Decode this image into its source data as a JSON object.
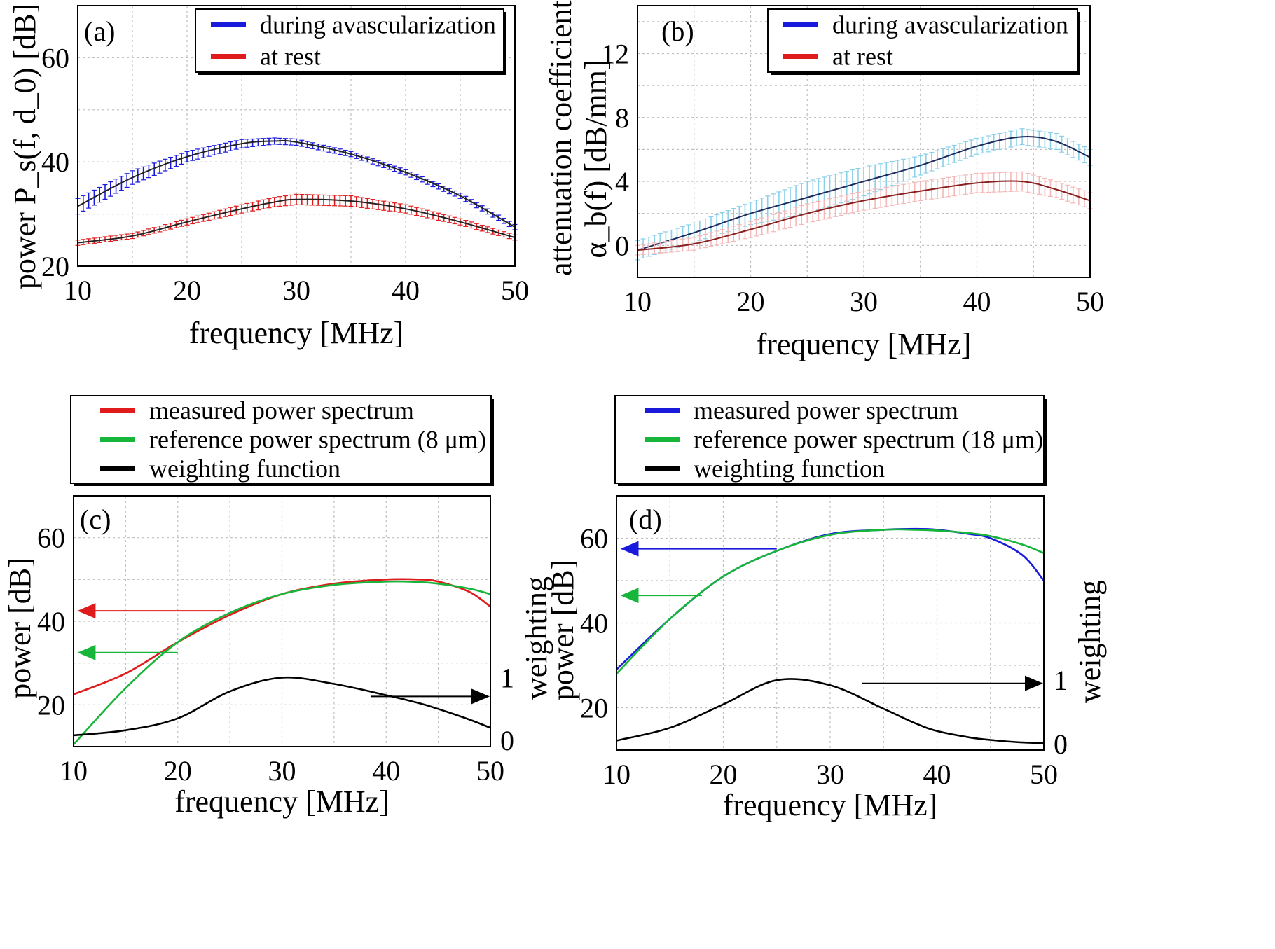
{
  "colors": {
    "blue": "#1a1adc",
    "red": "#e01b1b",
    "green": "#17b53a",
    "black": "#000000",
    "light_blue": "#8ad0e8",
    "dark_blue": "#1c2a5c",
    "light_red": "#f4b8b8",
    "dark_red": "#8a1f1f",
    "grid": "#bfbfbf"
  },
  "chart_data": [
    {
      "id": "a",
      "panel_label": "(a)",
      "type": "line",
      "xlabel": "frequency [MHz]",
      "ylabel": "power P_s(f, d_0) [dB]",
      "xlim": [
        10,
        50
      ],
      "ylim": [
        20,
        70
      ],
      "xticks": [
        10,
        20,
        30,
        40,
        50
      ],
      "yticks": [
        20,
        40,
        60
      ],
      "grid": true,
      "legend_position": "top-right",
      "x": [
        10,
        15,
        20,
        25,
        28,
        30,
        35,
        40,
        45,
        50
      ],
      "series": [
        {
          "name": "during avascularization",
          "color": "blue",
          "values": [
            31.5,
            37,
            41,
            43.5,
            44,
            43.8,
            41.5,
            38,
            33.5,
            27.5
          ],
          "error": [
            1.5,
            1.3,
            1.0,
            0.8,
            0.6,
            0.6,
            0.5,
            0.5,
            0.5,
            0.5
          ]
        },
        {
          "name": "at rest",
          "color": "red",
          "values": [
            24.5,
            25.8,
            28.5,
            31,
            32.3,
            32.8,
            32.5,
            31,
            28.5,
            25.5
          ],
          "error": [
            0.5,
            0.5,
            0.6,
            0.8,
            0.9,
            1.0,
            1.0,
            0.8,
            0.6,
            0.5
          ]
        }
      ]
    },
    {
      "id": "b",
      "panel_label": "(b)",
      "type": "line",
      "xlabel": "frequency [MHz]",
      "ylabel_line1": "attenuation coefficient",
      "ylabel_line2": "α_b(f) [dB/mm]",
      "xlim": [
        10,
        50
      ],
      "ylim": [
        -2,
        15
      ],
      "xticks": [
        10,
        20,
        30,
        40,
        50
      ],
      "yticks": [
        0,
        4,
        8,
        12
      ],
      "grid": true,
      "legend_position": "top-right",
      "x": [
        10,
        15,
        20,
        25,
        30,
        35,
        40,
        44,
        47,
        50
      ],
      "series": [
        {
          "name": "during avascularization",
          "color": "blue",
          "band_color": "light_blue",
          "line_color": "dark_blue",
          "values": [
            -0.3,
            0.8,
            2.0,
            3.0,
            4.0,
            5.0,
            6.2,
            6.8,
            6.5,
            5.5
          ],
          "error": [
            0.6,
            0.6,
            0.7,
            1.0,
            0.9,
            0.6,
            0.5,
            0.5,
            0.5,
            0.5
          ]
        },
        {
          "name": "at rest",
          "color": "red",
          "band_color": "light_red",
          "line_color": "dark_red",
          "values": [
            -0.3,
            0.1,
            1.0,
            2.0,
            2.8,
            3.4,
            3.9,
            4.0,
            3.5,
            2.8
          ],
          "error": [
            0.3,
            0.4,
            0.5,
            0.6,
            0.6,
            0.6,
            0.6,
            0.6,
            0.5,
            0.5
          ]
        }
      ]
    },
    {
      "id": "c",
      "panel_label": "(c)",
      "type": "line",
      "xlabel": "frequency [MHz]",
      "ylabel": "power [dB]",
      "y2label": "weighting",
      "xlim": [
        10,
        50
      ],
      "ylim": [
        10,
        70
      ],
      "y2lim": [
        -0.1,
        3.9
      ],
      "xticks": [
        10,
        20,
        30,
        40,
        50
      ],
      "yticks": [
        20,
        40,
        60
      ],
      "y2ticks": [
        0,
        1
      ],
      "grid": true,
      "legend_position": "above",
      "x": [
        10,
        15,
        20,
        25,
        30,
        35,
        40,
        43,
        45,
        48,
        50
      ],
      "series": [
        {
          "name": "measured power spectrum",
          "color": "red",
          "axis": "left",
          "values": [
            22.5,
            27.5,
            35,
            41.5,
            46.5,
            49,
            50,
            50,
            49.5,
            47,
            43.5
          ]
        },
        {
          "name": "reference power spectrum (8 μm)",
          "color": "green",
          "axis": "left",
          "values": [
            10.5,
            24,
            35,
            42,
            46.5,
            48.7,
            49.5,
            49.4,
            49,
            47.8,
            46.5
          ]
        },
        {
          "name": "weighting  function",
          "color": "black",
          "axis": "right",
          "values": [
            0.08,
            0.16,
            0.35,
            0.78,
            1.0,
            0.9,
            0.72,
            0.6,
            0.5,
            0.33,
            0.2
          ]
        }
      ],
      "arrows": [
        {
          "color": "red",
          "axis": "left",
          "y": 42.5,
          "from_x": 24.5,
          "to_x": 10.5
        },
        {
          "color": "green",
          "axis": "left",
          "y": 32.5,
          "from_x": 20,
          "to_x": 10.5
        },
        {
          "color": "black",
          "axis": "right",
          "y": 0.7,
          "from_x": 38.5,
          "to_x": 49.8
        }
      ]
    },
    {
      "id": "d",
      "panel_label": "(d)",
      "type": "line",
      "xlabel": "frequency [MHz]",
      "ylabel": "power [dB]",
      "y2label": "weighting",
      "xlim": [
        10,
        50
      ],
      "ylim": [
        10,
        70
      ],
      "y2lim": [
        -0.1,
        3.9
      ],
      "xticks": [
        10,
        20,
        30,
        40,
        50
      ],
      "yticks": [
        20,
        40,
        60
      ],
      "y2ticks": [
        0,
        1
      ],
      "grid": true,
      "legend_position": "above",
      "x": [
        10,
        15,
        20,
        25,
        30,
        35,
        38,
        40,
        43,
        45,
        48,
        50
      ],
      "series": [
        {
          "name": "measured power spectrum",
          "color": "blue",
          "axis": "left",
          "values": [
            29,
            41,
            51,
            57,
            61,
            62,
            62.2,
            62,
            61,
            60,
            56,
            50
          ]
        },
        {
          "name": "reference power spectrum (18 μm)",
          "color": "green",
          "axis": "left",
          "values": [
            28,
            41,
            51,
            57,
            60.8,
            62,
            62,
            61.8,
            61.2,
            60.5,
            58.5,
            56.5
          ]
        },
        {
          "name": "weighting  function",
          "color": "black",
          "axis": "right",
          "values": [
            0.05,
            0.25,
            0.62,
            1.0,
            0.92,
            0.55,
            0.32,
            0.2,
            0.1,
            0.06,
            0.02,
            0.01
          ]
        }
      ],
      "arrows": [
        {
          "color": "blue",
          "axis": "left",
          "y": 57.5,
          "from_x": 25,
          "to_x": 10.5
        },
        {
          "color": "green",
          "axis": "left",
          "y": 46.5,
          "from_x": 18,
          "to_x": 10.5
        },
        {
          "color": "black",
          "axis": "right",
          "y": 0.95,
          "from_x": 33,
          "to_x": 49.8
        }
      ]
    }
  ]
}
